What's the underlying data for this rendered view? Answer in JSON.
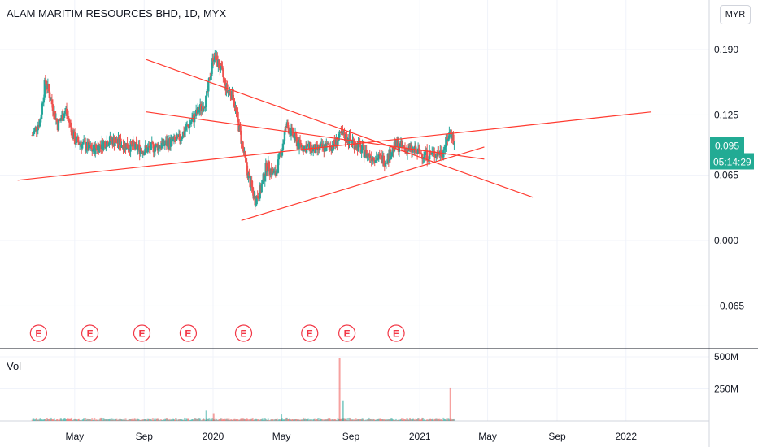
{
  "header": {
    "symbol_title": "ALAM MARITIM RESOURCES BHD, 1D, MYX",
    "currency": "MYR"
  },
  "volume_pane": {
    "label": "Vol"
  },
  "price_badges": {
    "last_price": "0.095",
    "countdown": "05:14:29"
  },
  "colors": {
    "up": "#26a69a",
    "down": "#ef5350",
    "trendline": "#ff3b30",
    "badge": "#22ab94",
    "earnings": "#f23645",
    "grid": "#f0f3fa",
    "axis_text": "#131722"
  },
  "earnings_markers": [
    "E",
    "E",
    "E",
    "E",
    "E",
    "E",
    "E",
    "E"
  ],
  "chart_data": {
    "type": "candlestick",
    "title": "ALAM MARITIM RESOURCES BHD, 1D, MYX",
    "price_axis_ticks": [
      0.19,
      0.125,
      0.065,
      0.0,
      -0.065
    ],
    "price_tick_labels": [
      "0.190",
      "0.125",
      "0.065",
      "0.000",
      "−0.065"
    ],
    "price_range": [
      -0.09,
      0.22
    ],
    "volume_axis_ticks": [
      "500M",
      "250M"
    ],
    "volume_range": [
      0,
      560
    ],
    "time_tick_labels": [
      "May",
      "Sep",
      "2020",
      "May",
      "Sep",
      "2021",
      "May",
      "Sep",
      "2022"
    ],
    "current_price": 0.095,
    "close_path": [
      [
        "2019-02-15",
        0.105
      ],
      [
        "2019-03-01",
        0.12
      ],
      [
        "2019-03-10",
        0.16
      ],
      [
        "2019-03-20",
        0.14
      ],
      [
        "2019-04-01",
        0.115
      ],
      [
        "2019-04-15",
        0.13
      ],
      [
        "2019-05-01",
        0.1
      ],
      [
        "2019-06-01",
        0.09
      ],
      [
        "2019-07-01",
        0.1
      ],
      [
        "2019-08-01",
        0.095
      ],
      [
        "2019-09-01",
        0.09
      ],
      [
        "2019-10-01",
        0.095
      ],
      [
        "2019-11-01",
        0.1
      ],
      [
        "2019-12-01",
        0.125
      ],
      [
        "2019-12-20",
        0.14
      ],
      [
        "2020-01-02",
        0.185
      ],
      [
        "2020-01-15",
        0.17
      ],
      [
        "2020-01-25",
        0.15
      ],
      [
        "2020-02-05",
        0.145
      ],
      [
        "2020-02-20",
        0.1
      ],
      [
        "2020-03-01",
        0.07
      ],
      [
        "2020-03-15",
        0.04
      ],
      [
        "2020-03-25",
        0.05
      ],
      [
        "2020-04-05",
        0.075
      ],
      [
        "2020-04-20",
        0.065
      ],
      [
        "2020-05-01",
        0.09
      ],
      [
        "2020-05-10",
        0.115
      ],
      [
        "2020-06-01",
        0.095
      ],
      [
        "2020-07-01",
        0.09
      ],
      [
        "2020-08-01",
        0.095
      ],
      [
        "2020-08-15",
        0.105
      ],
      [
        "2020-09-01",
        0.1
      ],
      [
        "2020-10-01",
        0.085
      ],
      [
        "2020-11-01",
        0.08
      ],
      [
        "2020-11-20",
        0.095
      ],
      [
        "2020-12-15",
        0.09
      ],
      [
        "2021-01-15",
        0.085
      ],
      [
        "2021-02-10",
        0.088
      ],
      [
        "2021-02-25",
        0.11
      ],
      [
        "2021-03-03",
        0.095
      ]
    ],
    "volume_spikes": [
      [
        "2019-12-20",
        80
      ],
      [
        "2020-01-02",
        60
      ],
      [
        "2020-05-01",
        50
      ],
      [
        "2020-08-12",
        490
      ],
      [
        "2020-08-18",
        160
      ],
      [
        "2021-02-24",
        260
      ]
    ],
    "trendlines": [
      {
        "from": [
          "2019-01-20",
          0.06
        ],
        "to": [
          "2022-02-15",
          0.128
        ]
      },
      {
        "from": [
          "2019-09-05",
          0.128
        ],
        "to": [
          "2021-04-25",
          0.081
        ]
      },
      {
        "from": [
          "2020-02-20",
          0.02
        ],
        "to": [
          "2021-04-25",
          0.093
        ]
      },
      {
        "from": [
          "2019-09-05",
          0.18
        ],
        "to": [
          "2021-07-20",
          0.043
        ]
      }
    ],
    "earnings_dates": [
      "2019-02-26",
      "2019-05-28",
      "2019-08-28",
      "2019-11-18",
      "2020-02-24",
      "2020-06-20",
      "2020-08-25",
      "2020-11-20"
    ],
    "grid": true
  }
}
